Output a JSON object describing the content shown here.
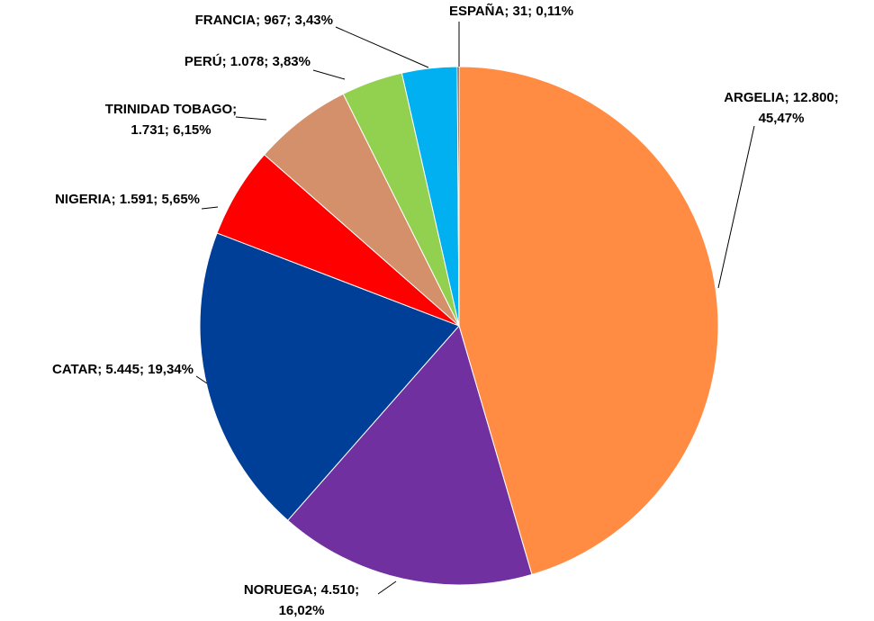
{
  "chart_data": {
    "type": "pie",
    "categories": [
      "ARGELIA",
      "NORUEGA",
      "CATAR",
      "NIGERIA",
      "TRINIDAD TOBAGO",
      "PERÚ",
      "FRANCIA",
      "ESPAÑA"
    ],
    "values": [
      12800,
      4510,
      5445,
      1591,
      1731,
      1078,
      967,
      31
    ],
    "percentages": [
      45.47,
      16.02,
      19.34,
      5.65,
      6.15,
      3.83,
      3.43,
      0.11
    ],
    "value_labels": [
      "ARGELIA; 12.800; 45,47%",
      "NORUEGA; 4.510; 16,02%",
      "CATAR; 5.445; 19,34%",
      "NIGERIA; 1.591; 5,65%",
      "TRINIDAD TOBAGO; 1.731; 6,15%",
      "PERÚ; 1.078; 3,83%",
      "FRANCIA; 967; 3,43%",
      "ESPAÑA; 31; 0,11%"
    ],
    "colors": [
      "#FF8C42",
      "#7030A0",
      "#003F98",
      "#FF0000",
      "#D4906A",
      "#92D050",
      "#00B0F0",
      "#1a1a1a"
    ]
  }
}
